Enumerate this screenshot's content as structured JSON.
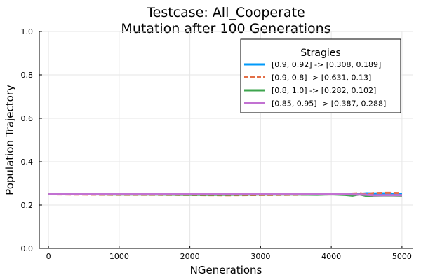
{
  "chart_data": {
    "type": "line",
    "title": "Testcase: All_Cooperate",
    "subtitle": "Mutation after 100 Generations",
    "xlabel": "NGenerations",
    "ylabel": "Population Trajectory",
    "xlim": [
      -130,
      5150
    ],
    "ylim": [
      0,
      1
    ],
    "xticks": [
      0,
      1000,
      2000,
      3000,
      4000,
      5000
    ],
    "yticks": [
      0.0,
      0.2,
      0.4,
      0.6,
      0.8,
      1.0
    ],
    "xtick_labels": [
      "0",
      "1000",
      "2000",
      "3000",
      "4000",
      "5000"
    ],
    "ytick_labels": [
      "0.0",
      "0.2",
      "0.4",
      "0.6",
      "0.8",
      "1.0"
    ],
    "grid": true,
    "legend": {
      "title": "Stragies",
      "position": "top-right"
    },
    "series": [
      {
        "name": "[0.9, 0.92] -> [0.308, 0.189]",
        "color": "#009AFA",
        "style": "solid",
        "x": [
          0,
          500,
          1000,
          1500,
          2000,
          2500,
          3000,
          3500,
          4000,
          4200,
          4400,
          4500,
          4600,
          4800,
          5000
        ],
        "y": [
          0.25,
          0.25,
          0.25,
          0.251,
          0.25,
          0.251,
          0.25,
          0.25,
          0.251,
          0.25,
          0.252,
          0.255,
          0.254,
          0.255,
          0.25
        ]
      },
      {
        "name": "[0.9, 0.8] -> [0.631, 0.13]",
        "color": "#E36F47",
        "style": "dashed",
        "x": [
          0,
          500,
          1000,
          1500,
          2000,
          2500,
          3000,
          3500,
          4000,
          4200,
          4400,
          4500,
          4600,
          4800,
          5000
        ],
        "y": [
          0.25,
          0.249,
          0.248,
          0.248,
          0.247,
          0.246,
          0.247,
          0.248,
          0.25,
          0.252,
          0.255,
          0.251,
          0.256,
          0.257,
          0.256
        ]
      },
      {
        "name": "[0.8, 1.0] -> [0.282, 0.102]",
        "color": "#3EA44E",
        "style": "solid",
        "x": [
          0,
          500,
          1000,
          1500,
          2000,
          2500,
          3000,
          3500,
          3800,
          4000,
          4200,
          4300,
          4400,
          4500,
          4600,
          4800,
          5000
        ],
        "y": [
          0.25,
          0.25,
          0.249,
          0.249,
          0.248,
          0.248,
          0.249,
          0.249,
          0.248,
          0.25,
          0.247,
          0.244,
          0.25,
          0.242,
          0.244,
          0.245,
          0.244
        ]
      },
      {
        "name": "[0.85, 0.95] -> [0.387, 0.288]",
        "color": "#C271D2",
        "style": "solid",
        "x": [
          0,
          500,
          1000,
          1500,
          2000,
          2500,
          3000,
          3500,
          4000,
          4200,
          4400,
          4500,
          4600,
          4800,
          5000
        ],
        "y": [
          0.25,
          0.251,
          0.252,
          0.252,
          0.252,
          0.252,
          0.252,
          0.252,
          0.25,
          0.25,
          0.249,
          0.248,
          0.245,
          0.246,
          0.246
        ]
      }
    ]
  }
}
